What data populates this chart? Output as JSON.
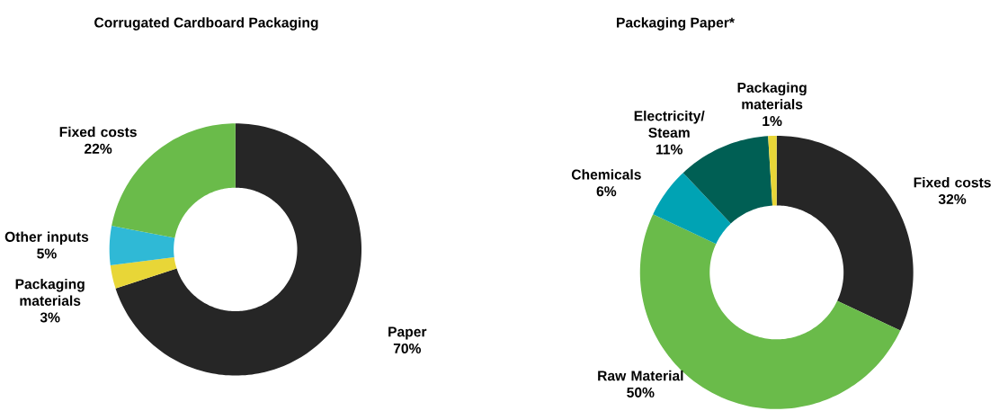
{
  "chart_data": [
    {
      "type": "donut",
      "title": "Corrugated Cardboard Packaging",
      "categories": [
        "Paper",
        "Packaging materials",
        "Other inputs",
        "Fixed costs"
      ],
      "values": [
        70,
        3,
        5,
        22
      ],
      "value_labels": [
        "70%",
        "3%",
        "5%",
        "22%"
      ],
      "colors": [
        "#262626",
        "#e8d637",
        "#2fb9d6",
        "#6abb4a"
      ]
    },
    {
      "type": "donut",
      "title": "Packaging Paper*",
      "categories": [
        "Fixed costs",
        "Raw Material",
        "Chemicals",
        "Electricity/ Steam",
        "Packaging materials"
      ],
      "values": [
        32,
        50,
        6,
        11,
        1
      ],
      "value_labels": [
        "32%",
        "50%",
        "6%",
        "11%",
        "1%"
      ],
      "colors": [
        "#262626",
        "#6abb4a",
        "#00a3b4",
        "#005f54",
        "#e8d637"
      ]
    }
  ]
}
